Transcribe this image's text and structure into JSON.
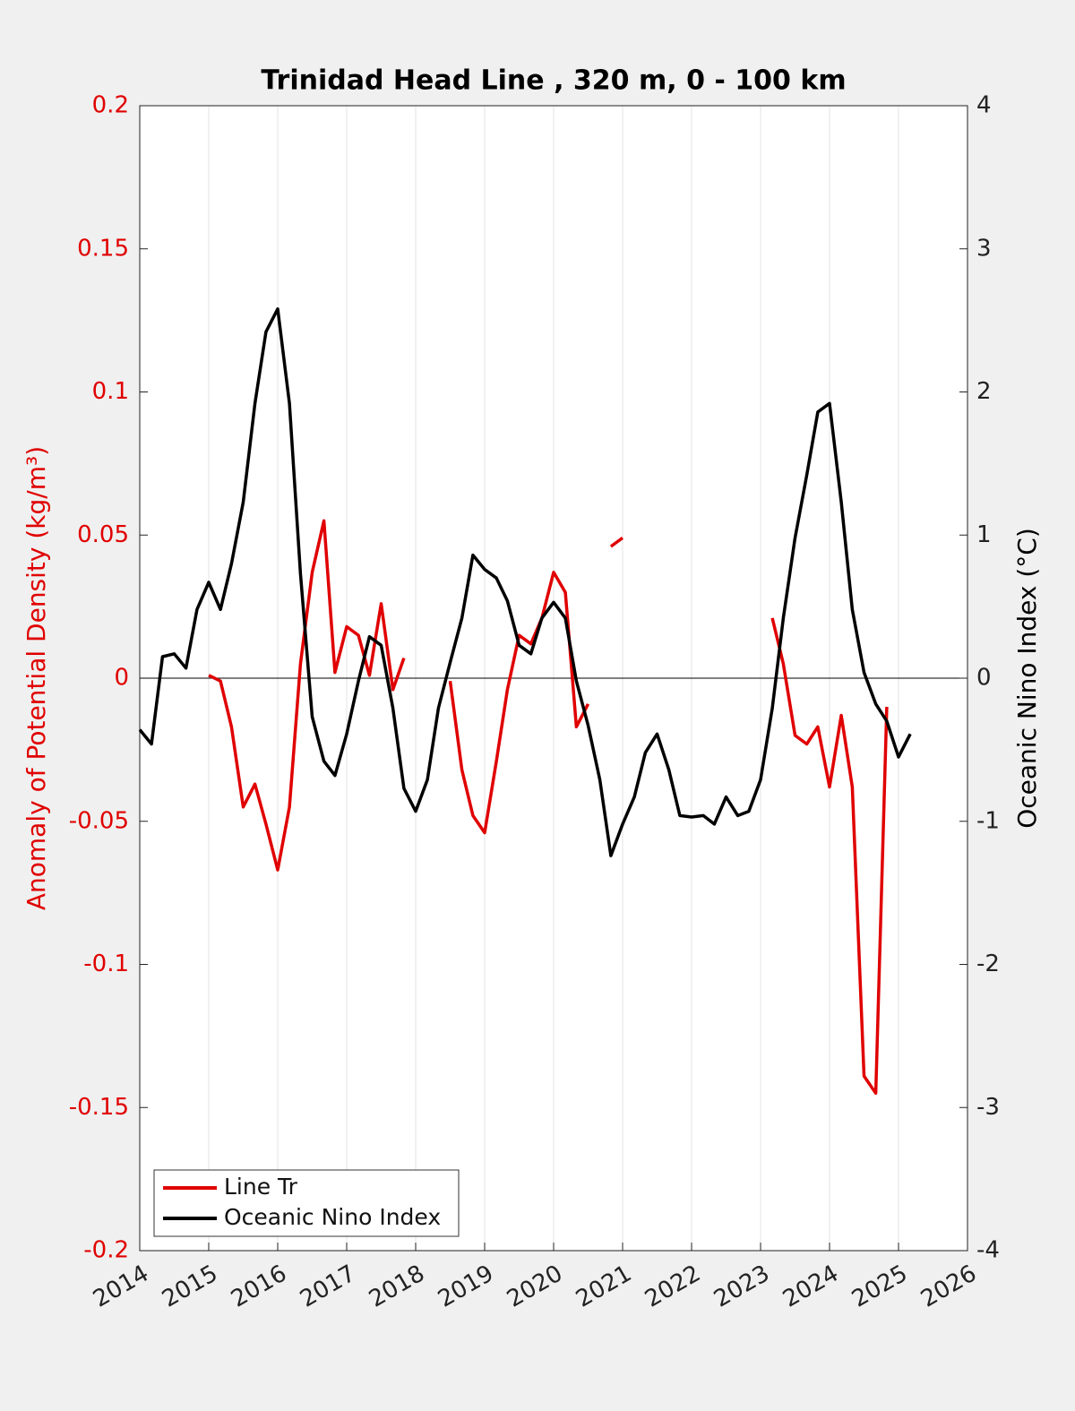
{
  "chart_data": {
    "type": "line",
    "title": "Trinidad Head Line , 320 m, 0 - 100 km",
    "ylabel": "Anomaly of Potential Density (kg/m³)",
    "y2label": "Oceanic Nino Index (°C)",
    "ycolor": "#e00000",
    "x": [
      2014,
      2014.17,
      2014.33,
      2014.5,
      2014.67,
      2014.83,
      2015,
      2015.17,
      2015.33,
      2015.5,
      2015.67,
      2015.83,
      2016,
      2016.17,
      2016.33,
      2016.5,
      2016.67,
      2016.83,
      2017,
      2017.17,
      2017.33,
      2017.5,
      2017.67,
      2017.83,
      2018,
      2018.17,
      2018.33,
      2018.5,
      2018.67,
      2018.83,
      2019,
      2019.17,
      2019.33,
      2019.5,
      2019.67,
      2019.83,
      2020,
      2020.17,
      2020.33,
      2020.5,
      2020.67,
      2020.83,
      2021,
      2021.17,
      2021.33,
      2021.5,
      2021.67,
      2021.83,
      2022,
      2022.17,
      2022.33,
      2022.5,
      2022.67,
      2022.83,
      2023,
      2023.17,
      2023.33,
      2023.5,
      2023.67,
      2023.83,
      2024,
      2024.17,
      2024.33,
      2024.5,
      2024.67,
      2024.83,
      2025,
      2025.17
    ],
    "series": [
      {
        "name": "Line Tr",
        "color": "#e00000",
        "axis": "y",
        "values": [
          null,
          null,
          null,
          null,
          null,
          null,
          0.001,
          -0.001,
          -0.017,
          -0.045,
          -0.037,
          -0.051,
          -0.067,
          -0.045,
          0.005,
          0.037,
          0.055,
          0.002,
          0.018,
          0.015,
          0.001,
          0.026,
          -0.004,
          0.007,
          null,
          null,
          null,
          -0.001,
          -0.032,
          -0.048,
          -0.054,
          -0.029,
          -0.004,
          0.015,
          0.012,
          0.021,
          0.037,
          0.03,
          -0.017,
          -0.009,
          null,
          0.046,
          0.049,
          null,
          null,
          null,
          null,
          null,
          null,
          null,
          null,
          null,
          null,
          null,
          null,
          0.021,
          0.005,
          -0.02,
          -0.023,
          -0.017,
          -0.038,
          -0.013,
          -0.038,
          -0.139,
          -0.145,
          -0.01,
          null,
          null
        ]
      },
      {
        "name": "Oceanic Nino Index",
        "color": "#000000",
        "axis": "y2",
        "values": [
          -0.36,
          -0.46,
          0.15,
          0.17,
          0.07,
          0.48,
          0.67,
          0.48,
          0.8,
          1.23,
          1.92,
          2.42,
          2.58,
          1.92,
          0.73,
          -0.27,
          -0.58,
          -0.68,
          -0.39,
          -0.02,
          0.29,
          0.23,
          -0.21,
          -0.77,
          -0.93,
          -0.71,
          -0.21,
          0.11,
          0.42,
          0.86,
          0.76,
          0.7,
          0.54,
          0.23,
          0.17,
          0.42,
          0.53,
          0.42,
          -0.02,
          -0.33,
          -0.71,
          -1.24,
          -1.02,
          -0.83,
          -0.52,
          -0.39,
          -0.64,
          -0.96,
          -0.97,
          -0.96,
          -1.02,
          -0.83,
          -0.96,
          -0.93,
          -0.71,
          -0.21,
          0.42,
          0.98,
          1.42,
          1.86,
          1.92,
          1.23,
          0.48,
          0.04,
          -0.18,
          -0.3,
          -0.55,
          -0.39
        ]
      }
    ],
    "xlim": [
      2014,
      2026
    ],
    "xticks": [
      2014,
      2015,
      2016,
      2017,
      2018,
      2019,
      2020,
      2021,
      2022,
      2023,
      2024,
      2025,
      2026
    ],
    "ylim": [
      -0.2,
      0.2
    ],
    "yticks": [
      -0.2,
      -0.15,
      -0.1,
      -0.05,
      0,
      0.05,
      0.1,
      0.15,
      0.2
    ],
    "y2lim": [
      -4,
      4
    ],
    "y2ticks": [
      -4,
      -3,
      -2,
      -1,
      0,
      1,
      2,
      3,
      4
    ],
    "grid": "x",
    "legend": "lower left"
  }
}
